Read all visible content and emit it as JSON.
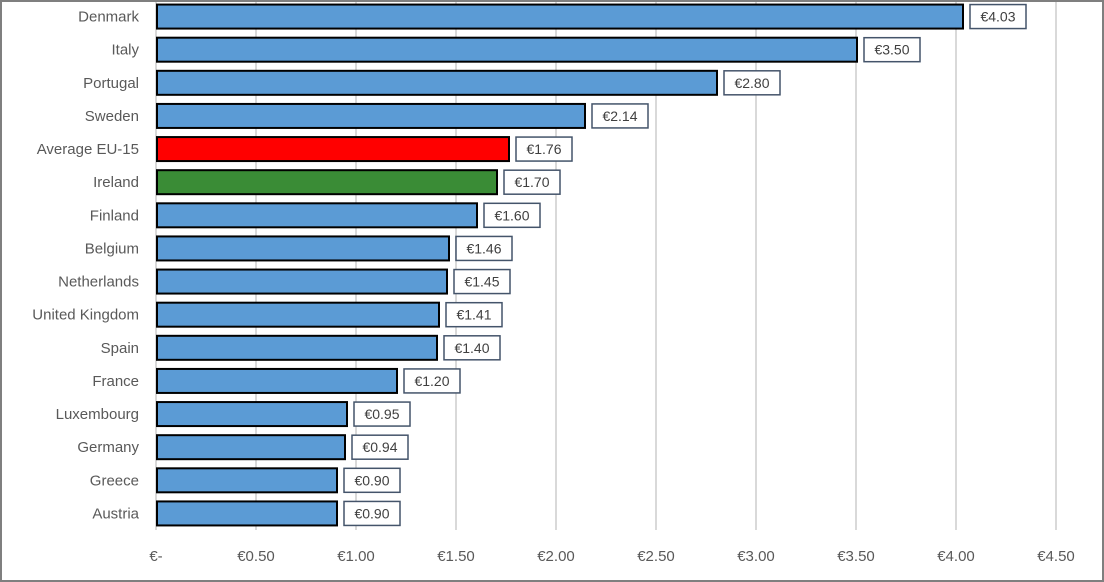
{
  "chart_data": {
    "type": "bar",
    "orientation": "horizontal",
    "title": "",
    "xlabel": "",
    "ylabel": "",
    "xlim": [
      0,
      4.5
    ],
    "x_ticks": [
      0,
      0.5,
      1.0,
      1.5,
      2.0,
      2.5,
      3.0,
      3.5,
      4.0,
      4.5
    ],
    "x_tick_labels": [
      "€-",
      "€0.50",
      "€1.00",
      "€1.50",
      "€2.00",
      "€2.50",
      "€3.00",
      "€3.50",
      "€4.00",
      "€4.50"
    ],
    "grid": "vertical",
    "categories": [
      "Denmark",
      "Italy",
      "Portugal",
      "Sweden",
      "Average EU-15",
      "Ireland",
      "Finland",
      "Belgium",
      "Netherlands",
      "United Kingdom",
      "Spain",
      "France",
      "Luxembourg",
      "Germany",
      "Greece",
      "Austria"
    ],
    "values": [
      4.03,
      3.5,
      2.8,
      2.14,
      1.76,
      1.7,
      1.6,
      1.46,
      1.45,
      1.41,
      1.4,
      1.2,
      0.95,
      0.94,
      0.9,
      0.9
    ],
    "data_labels": [
      "€4.03",
      "€3.50",
      "€2.80",
      "€2.14",
      "€1.76",
      "€1.70",
      "€1.60",
      "€1.46",
      "€1.45",
      "€1.41",
      "€1.40",
      "€1.20",
      "€0.95",
      "€0.94",
      "€0.90",
      "€0.90"
    ],
    "colors": {
      "default": "#5b9bd5",
      "Average EU-15": "#ff0000",
      "Ireland": "#3a8c36"
    }
  }
}
